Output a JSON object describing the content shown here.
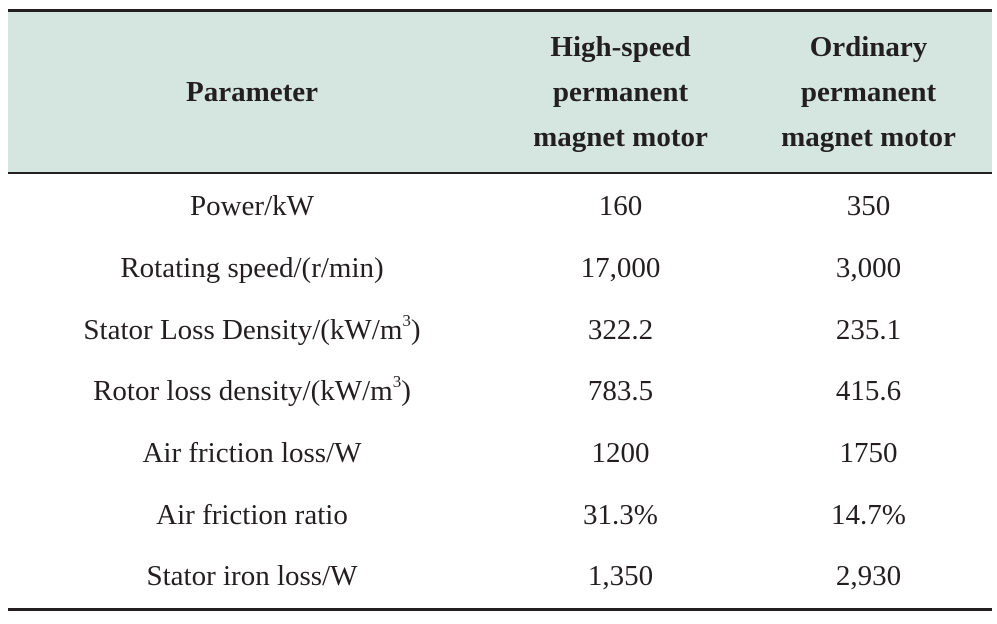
{
  "table": {
    "headers": [
      "Parameter",
      "High-speed permanent magnet motor",
      "Ordinary permanent magnet motor"
    ],
    "rows": [
      {
        "parameter_pre": "Power/kW",
        "parameter_sup": "",
        "parameter_post": "",
        "high_speed": "160",
        "ordinary": "350"
      },
      {
        "parameter_pre": "Rotating speed/(r/min)",
        "parameter_sup": "",
        "parameter_post": "",
        "high_speed": "17,000",
        "ordinary": "3,000"
      },
      {
        "parameter_pre": "Stator Loss Density/(kW/m",
        "parameter_sup": "3",
        "parameter_post": ")",
        "high_speed": "322.2",
        "ordinary": "235.1"
      },
      {
        "parameter_pre": "Rotor loss density/(kW/m",
        "parameter_sup": "3",
        "parameter_post": ")",
        "high_speed": "783.5",
        "ordinary": "415.6"
      },
      {
        "parameter_pre": "Air friction loss/W",
        "parameter_sup": "",
        "parameter_post": "",
        "high_speed": "1200",
        "ordinary": "1750"
      },
      {
        "parameter_pre": "Air friction ratio",
        "parameter_sup": "",
        "parameter_post": "",
        "high_speed": "31.3%",
        "ordinary": "14.7%"
      },
      {
        "parameter_pre": "Stator iron loss/W",
        "parameter_sup": "",
        "parameter_post": "",
        "high_speed": "1,350",
        "ordinary": "2,930"
      }
    ]
  },
  "colors": {
    "header_background": "#d5e6e1",
    "text": "#231f20",
    "rules": "#231f20"
  }
}
